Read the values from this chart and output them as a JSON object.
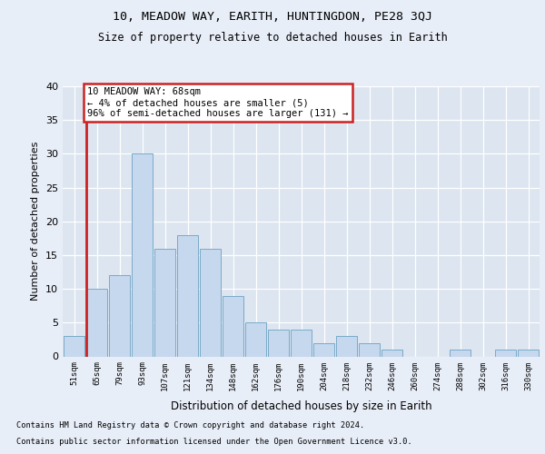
{
  "title1": "10, MEADOW WAY, EARITH, HUNTINGDON, PE28 3QJ",
  "title2": "Size of property relative to detached houses in Earith",
  "xlabel": "Distribution of detached houses by size in Earith",
  "ylabel": "Number of detached properties",
  "bar_labels": [
    "51sqm",
    "65sqm",
    "79sqm",
    "93sqm",
    "107sqm",
    "121sqm",
    "134sqm",
    "148sqm",
    "162sqm",
    "176sqm",
    "190sqm",
    "204sqm",
    "218sqm",
    "232sqm",
    "246sqm",
    "260sqm",
    "274sqm",
    "288sqm",
    "302sqm",
    "316sqm",
    "330sqm"
  ],
  "bar_values": [
    3,
    10,
    12,
    30,
    16,
    18,
    16,
    9,
    5,
    4,
    4,
    2,
    3,
    2,
    1,
    0,
    0,
    1,
    0,
    1,
    1
  ],
  "bar_color": "#c5d8ee",
  "bar_edge_color": "#7aaac8",
  "highlight_line_color": "#cc2222",
  "annotation_title": "10 MEADOW WAY: 68sqm",
  "annotation_line1": "← 4% of detached houses are smaller (5)",
  "annotation_line2": "96% of semi-detached houses are larger (131) →",
  "footnote1": "Contains HM Land Registry data © Crown copyright and database right 2024.",
  "footnote2": "Contains public sector information licensed under the Open Government Licence v3.0.",
  "bg_color": "#e8eef8",
  "plot_bg_color": "#dce5f0",
  "ylim": [
    0,
    40
  ],
  "yticks": [
    0,
    5,
    10,
    15,
    20,
    25,
    30,
    35,
    40
  ]
}
